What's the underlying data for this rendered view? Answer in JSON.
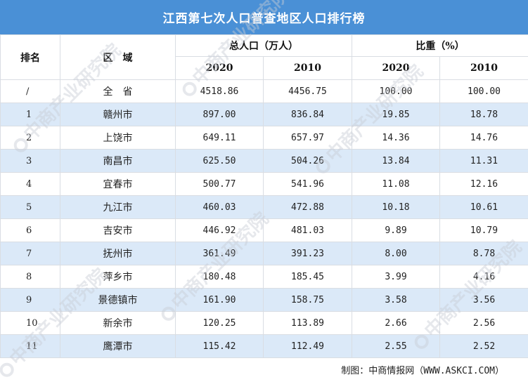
{
  "title": "江西第七次人口普查地区人口排行榜",
  "headers": {
    "rank": "排名",
    "region": "区　域",
    "population_group": "总人口（万人）",
    "share_group": "比重（%）",
    "pop_2020": "2020",
    "pop_2010": "2010",
    "share_2020": "2020",
    "share_2010": "2010"
  },
  "rows": [
    {
      "rank": "/",
      "region": "全　省",
      "pop2020": "4518.86",
      "pop2010": "4456.75",
      "share2020": "100.00",
      "share2010": "100.00"
    },
    {
      "rank": "1",
      "region": "赣州市",
      "pop2020": "897.00",
      "pop2010": "836.84",
      "share2020": "19.85",
      "share2010": "18.78"
    },
    {
      "rank": "2",
      "region": "上饶市",
      "pop2020": "649.11",
      "pop2010": "657.97",
      "share2020": "14.36",
      "share2010": "14.76"
    },
    {
      "rank": "3",
      "region": "南昌市",
      "pop2020": "625.50",
      "pop2010": "504.26",
      "share2020": "13.84",
      "share2010": "11.31"
    },
    {
      "rank": "4",
      "region": "宜春市",
      "pop2020": "500.77",
      "pop2010": "541.96",
      "share2020": "11.08",
      "share2010": "12.16"
    },
    {
      "rank": "5",
      "region": "九江市",
      "pop2020": "460.03",
      "pop2010": "472.88",
      "share2020": "10.18",
      "share2010": "10.61"
    },
    {
      "rank": "6",
      "region": "吉安市",
      "pop2020": "446.92",
      "pop2010": "481.03",
      "share2020": "9.89",
      "share2010": "10.79"
    },
    {
      "rank": "7",
      "region": "抚州市",
      "pop2020": "361.49",
      "pop2010": "391.23",
      "share2020": "8.00",
      "share2010": "8.78"
    },
    {
      "rank": "8",
      "region": "萍乡市",
      "pop2020": "180.48",
      "pop2010": "185.45",
      "share2020": "3.99",
      "share2010": "4.16"
    },
    {
      "rank": "9",
      "region": "景德镇市",
      "pop2020": "161.90",
      "pop2010": "158.75",
      "share2020": "3.58",
      "share2010": "3.56"
    },
    {
      "rank": "10",
      "region": "新余市",
      "pop2020": "120.25",
      "pop2010": "113.89",
      "share2020": "2.66",
      "share2010": "2.56"
    },
    {
      "rank": "11",
      "region": "鹰潭市",
      "pop2020": "115.42",
      "pop2010": "112.49",
      "share2020": "2.55",
      "share2010": "2.52"
    }
  ],
  "footer": {
    "prefix": "制图：中商情报网",
    "url": "（WWW.ASKCI.COM）"
  },
  "watermark": "中商产业研究院",
  "colors": {
    "title_bg": "#4a90d6",
    "row_alt_bg": "#dbe9f8",
    "border": "#d9dde3"
  }
}
